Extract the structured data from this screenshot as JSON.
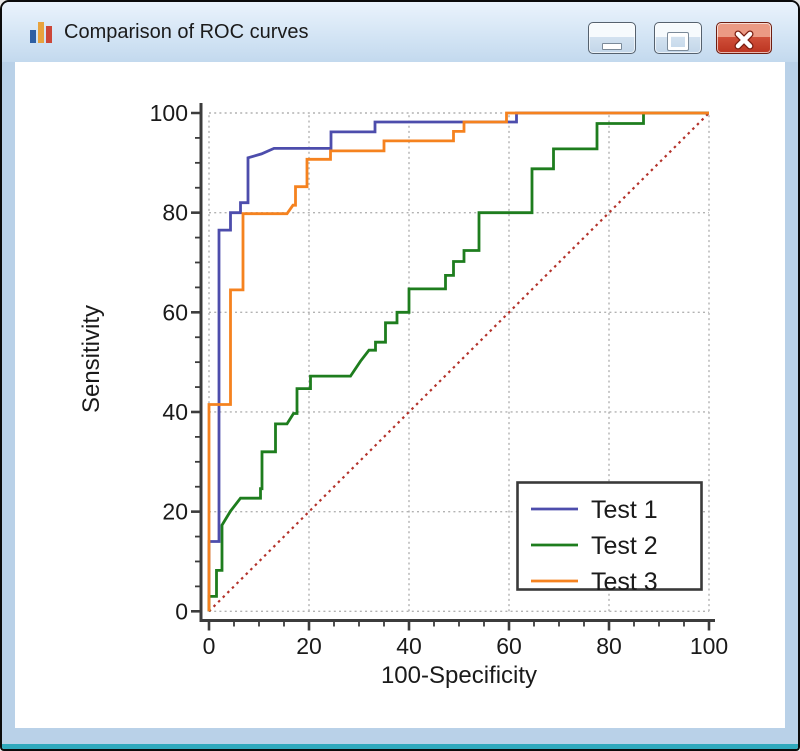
{
  "window": {
    "title": "Comparison of ROC curves",
    "icons": {
      "app": "bar-chart-icon",
      "minimize": "minimize-icon",
      "maximize": "maximize-icon",
      "close": "close-icon"
    }
  },
  "chart_data": {
    "type": "line",
    "subtype": "roc-step-curves",
    "title": "Comparison of ROC curves",
    "xlabel": "100-Specificity",
    "ylabel": "Sensitivity",
    "xlim": [
      0,
      100
    ],
    "ylim": [
      0,
      100
    ],
    "x_ticks": [
      0,
      20,
      40,
      60,
      80,
      100
    ],
    "y_ticks": [
      0,
      20,
      40,
      60,
      80,
      100
    ],
    "minor_tick_step": 5,
    "grid": "dotted-gray-at-major-ticks",
    "legend_position": "lower right",
    "legend_entries": [
      "Test 1",
      "Test 2",
      "Test 3"
    ],
    "reference_line": {
      "name": "chance-diagonal",
      "from": [
        0,
        0
      ],
      "to": [
        100,
        100
      ],
      "color": "#b3322a",
      "style": "dotted"
    },
    "series": [
      {
        "name": "Test 1",
        "color": "#4d4dac",
        "points": [
          [
            0,
            0
          ],
          [
            0,
            14
          ],
          [
            2,
            14
          ],
          [
            2,
            76.5
          ],
          [
            4.3,
            76.5
          ],
          [
            4.3,
            80
          ],
          [
            6.3,
            80
          ],
          [
            6.3,
            82
          ],
          [
            7.8,
            82
          ],
          [
            7.8,
            91
          ],
          [
            10.5,
            91.8
          ],
          [
            13,
            92.9
          ],
          [
            24.4,
            92.9
          ],
          [
            24.4,
            96.2
          ],
          [
            33.2,
            96.2
          ],
          [
            33.2,
            98.2
          ],
          [
            61.5,
            98.2
          ],
          [
            61.5,
            100
          ],
          [
            100,
            100
          ]
        ]
      },
      {
        "name": "Test 2",
        "color": "#1e7d1e",
        "points": [
          [
            0,
            0
          ],
          [
            0,
            3
          ],
          [
            1.5,
            3
          ],
          [
            1.5,
            8.2
          ],
          [
            2.6,
            8.2
          ],
          [
            2.6,
            17.3
          ],
          [
            4.3,
            20.1
          ],
          [
            6.3,
            22.7
          ],
          [
            10.3,
            22.7
          ],
          [
            10.3,
            24.6
          ],
          [
            10.6,
            24.6
          ],
          [
            10.6,
            32
          ],
          [
            13.3,
            32
          ],
          [
            13.3,
            37.6
          ],
          [
            15.6,
            37.6
          ],
          [
            16.9,
            39.7
          ],
          [
            17.6,
            39.7
          ],
          [
            17.6,
            44.7
          ],
          [
            20.3,
            44.7
          ],
          [
            20.3,
            47.2
          ],
          [
            28.3,
            47.2
          ],
          [
            30.3,
            50.2
          ],
          [
            32,
            52.4
          ],
          [
            33.3,
            52.4
          ],
          [
            33.3,
            54
          ],
          [
            35.3,
            54
          ],
          [
            35.3,
            57.9
          ],
          [
            37.6,
            57.9
          ],
          [
            37.6,
            60
          ],
          [
            40,
            60
          ],
          [
            40,
            64.7
          ],
          [
            47.3,
            64.7
          ],
          [
            47.3,
            67.4
          ],
          [
            48.9,
            67.4
          ],
          [
            48.9,
            70.2
          ],
          [
            51,
            70.2
          ],
          [
            51,
            72.4
          ],
          [
            54,
            72.4
          ],
          [
            54,
            80
          ],
          [
            64.6,
            80
          ],
          [
            64.6,
            88.8
          ],
          [
            68.9,
            88.8
          ],
          [
            68.9,
            92.8
          ],
          [
            77.6,
            92.8
          ],
          [
            77.6,
            97.9
          ],
          [
            86.9,
            97.9
          ],
          [
            86.9,
            100
          ],
          [
            100,
            100
          ]
        ]
      },
      {
        "name": "Test 3",
        "color": "#f5821f",
        "points": [
          [
            0,
            0
          ],
          [
            0,
            41.5
          ],
          [
            4.3,
            41.5
          ],
          [
            4.3,
            64.5
          ],
          [
            6.8,
            64.5
          ],
          [
            6.8,
            79.8
          ],
          [
            15.6,
            79.8
          ],
          [
            16.8,
            81.5
          ],
          [
            17.3,
            81.5
          ],
          [
            17.3,
            85.2
          ],
          [
            19.6,
            85.2
          ],
          [
            19.6,
            90.7
          ],
          [
            24.3,
            90.7
          ],
          [
            24.3,
            92.4
          ],
          [
            35,
            92.4
          ],
          [
            35,
            94.4
          ],
          [
            48.9,
            94.4
          ],
          [
            48.9,
            96.3
          ],
          [
            51,
            96.3
          ],
          [
            51,
            98.2
          ],
          [
            59.5,
            98.2
          ],
          [
            59.5,
            100
          ],
          [
            100,
            100
          ]
        ]
      }
    ],
    "colors": {
      "grid": "#b2b2b2",
      "axis": "#3c3c3c",
      "text": "#1a1a1a",
      "legend_border": "#3a3a3a",
      "plot_background": "#ffffff"
    }
  }
}
